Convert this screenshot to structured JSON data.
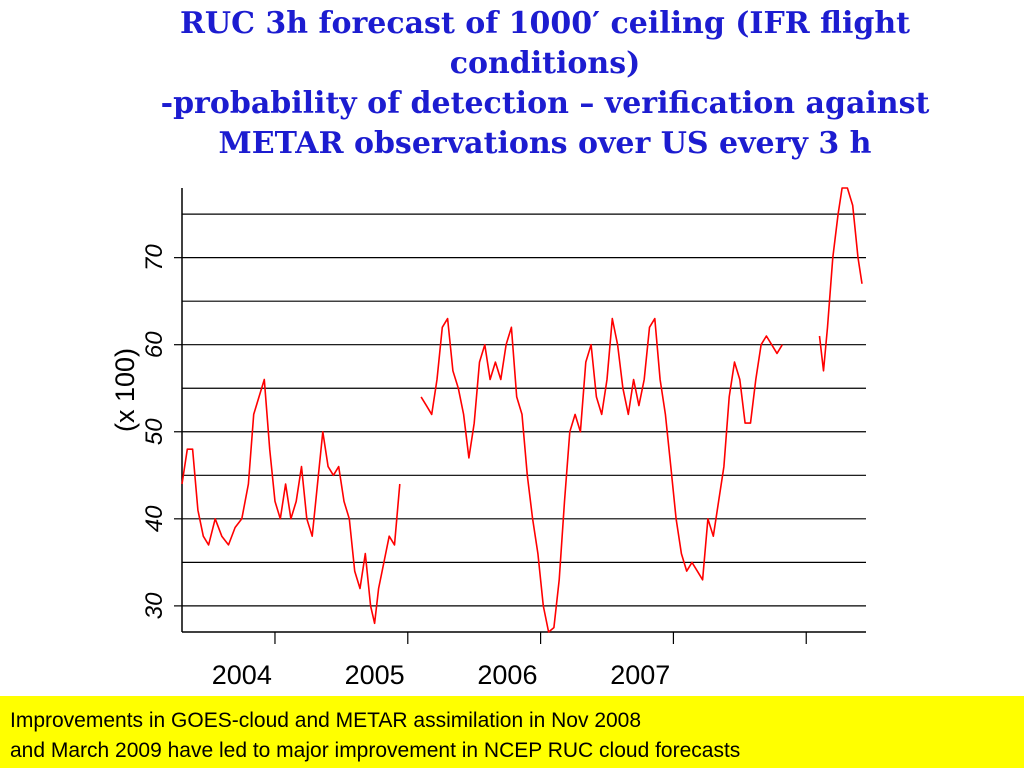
{
  "title_lines": [
    "RUC 3h forecast of 1000′ ceiling (IFR flight",
    "conditions)",
    "-probability of detection – verification against",
    "METAR observations over US every 3 h"
  ],
  "note_lines": [
    "Improvements in GOES-cloud and METAR assimilation in Nov 2008",
    "and March 2009 have led to major improvement in NCEP RUC cloud forecasts"
  ],
  "colors": {
    "title": "#1c1cd0",
    "series": "#ff0000",
    "note_bg": "#ffff00"
  },
  "chart_data": {
    "type": "line",
    "title": "RUC 3h forecast of 1000′ ceiling (IFR flight conditions) -probability of detection – verification against METAR observations over US every 3 h",
    "xlabel": "",
    "ylabel": "(x 100)",
    "ylim": [
      27,
      78
    ],
    "xlim": [
      2003.3,
      2008.45
    ],
    "yticks": [
      30,
      40,
      50,
      60,
      70
    ],
    "gridlines_y": [
      30,
      35,
      40,
      45,
      50,
      55,
      60,
      65,
      70,
      75
    ],
    "xtick_positions": [
      2004,
      2005,
      2006,
      2007,
      2008
    ],
    "xtick_labels": [
      "2004",
      "2005",
      "2006",
      "2007"
    ],
    "xtick_label_at": [
      2003.75,
      2004.75,
      2005.75,
      2006.75
    ],
    "grid": "horizontal",
    "series": [
      {
        "segments": [
          [
            [
              2003.3,
              44
            ],
            [
              2003.34,
              48
            ],
            [
              2003.38,
              48
            ],
            [
              2003.42,
              41
            ],
            [
              2003.46,
              38
            ],
            [
              2003.5,
              37
            ],
            [
              2003.55,
              40
            ],
            [
              2003.6,
              38
            ],
            [
              2003.65,
              37
            ],
            [
              2003.7,
              39
            ],
            [
              2003.75,
              40
            ],
            [
              2003.8,
              44
            ],
            [
              2003.84,
              52
            ],
            [
              2003.88,
              54
            ],
            [
              2003.92,
              56
            ],
            [
              2003.96,
              48
            ],
            [
              2004.0,
              42
            ],
            [
              2004.04,
              40
            ],
            [
              2004.08,
              44
            ],
            [
              2004.12,
              40
            ],
            [
              2004.16,
              42
            ],
            [
              2004.2,
              46
            ],
            [
              2004.24,
              40
            ],
            [
              2004.28,
              38
            ],
            [
              2004.32,
              44
            ],
            [
              2004.36,
              50
            ],
            [
              2004.4,
              46
            ],
            [
              2004.44,
              45
            ],
            [
              2004.48,
              46
            ],
            [
              2004.52,
              42
            ],
            [
              2004.56,
              40
            ],
            [
              2004.6,
              34
            ],
            [
              2004.64,
              32
            ],
            [
              2004.68,
              36
            ],
            [
              2004.72,
              30
            ],
            [
              2004.75,
              28
            ],
            [
              2004.78,
              32
            ],
            [
              2004.82,
              35
            ],
            [
              2004.86,
              38
            ],
            [
              2004.9,
              37
            ],
            [
              2004.94,
              44
            ]
          ],
          [
            [
              2005.1,
              54
            ],
            [
              2005.14,
              53
            ],
            [
              2005.18,
              52
            ],
            [
              2005.22,
              56
            ],
            [
              2005.26,
              62
            ],
            [
              2005.3,
              63
            ],
            [
              2005.34,
              57
            ],
            [
              2005.38,
              55
            ],
            [
              2005.42,
              52
            ],
            [
              2005.46,
              47
            ],
            [
              2005.5,
              51
            ],
            [
              2005.54,
              58
            ],
            [
              2005.58,
              60
            ],
            [
              2005.62,
              56
            ],
            [
              2005.66,
              58
            ],
            [
              2005.7,
              56
            ],
            [
              2005.74,
              60
            ],
            [
              2005.78,
              62
            ],
            [
              2005.82,
              54
            ],
            [
              2005.86,
              52
            ],
            [
              2005.9,
              45
            ],
            [
              2005.94,
              40
            ],
            [
              2005.98,
              36
            ],
            [
              2006.02,
              30
            ],
            [
              2006.06,
              27
            ],
            [
              2006.1,
              27.5
            ],
            [
              2006.14,
              33
            ],
            [
              2006.18,
              42
            ],
            [
              2006.22,
              50
            ],
            [
              2006.26,
              52
            ],
            [
              2006.3,
              50
            ],
            [
              2006.34,
              58
            ],
            [
              2006.38,
              60
            ],
            [
              2006.42,
              54
            ],
            [
              2006.46,
              52
            ],
            [
              2006.5,
              56
            ],
            [
              2006.54,
              63
            ],
            [
              2006.58,
              60
            ],
            [
              2006.62,
              55
            ],
            [
              2006.66,
              52
            ],
            [
              2006.7,
              56
            ],
            [
              2006.74,
              53
            ],
            [
              2006.78,
              56
            ],
            [
              2006.82,
              62
            ],
            [
              2006.86,
              63
            ],
            [
              2006.9,
              56
            ],
            [
              2006.94,
              52
            ],
            [
              2006.98,
              46
            ],
            [
              2007.02,
              40
            ],
            [
              2007.06,
              36
            ],
            [
              2007.1,
              34
            ],
            [
              2007.14,
              35
            ],
            [
              2007.18,
              34
            ],
            [
              2007.22,
              33
            ],
            [
              2007.26,
              40
            ],
            [
              2007.3,
              38
            ],
            [
              2007.34,
              42
            ],
            [
              2007.38,
              46
            ],
            [
              2007.42,
              54
            ],
            [
              2007.46,
              58
            ],
            [
              2007.5,
              56
            ],
            [
              2007.54,
              51
            ],
            [
              2007.58,
              51
            ],
            [
              2007.62,
              56
            ],
            [
              2007.66,
              60
            ],
            [
              2007.7,
              61
            ],
            [
              2007.74,
              60
            ],
            [
              2007.78,
              59
            ],
            [
              2007.82,
              60
            ]
          ],
          [
            [
              2008.1,
              61
            ],
            [
              2008.13,
              57
            ],
            [
              2008.16,
              62
            ],
            [
              2008.2,
              70
            ],
            [
              2008.24,
              75
            ],
            [
              2008.27,
              78
            ],
            [
              2008.31,
              78
            ],
            [
              2008.35,
              76
            ],
            [
              2008.39,
              70
            ],
            [
              2008.42,
              67
            ]
          ]
        ]
      }
    ]
  }
}
